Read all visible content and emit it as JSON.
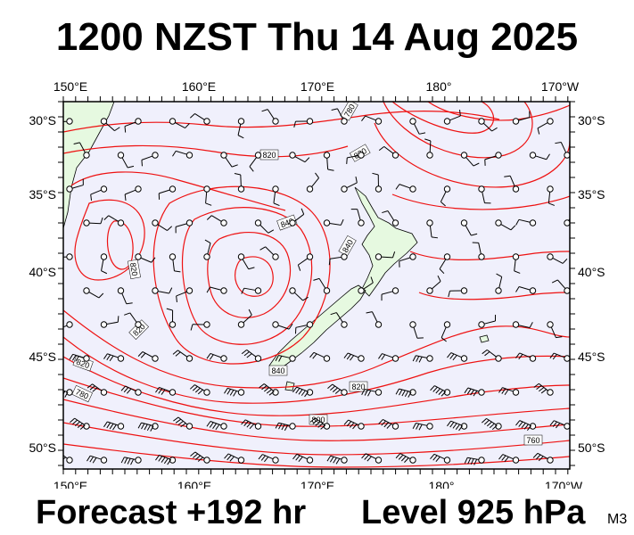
{
  "title": "1200 NZST Thu 14 Aug 2025",
  "forecast": "Forecast +192 hr",
  "level": "Level 925 hPa",
  "model_code": "M3",
  "map": {
    "lon_labels": [
      "150°E",
      "160°E",
      "170°E",
      "180°",
      "170°W"
    ],
    "lat_labels": [
      "30°S",
      "35°S",
      "40°S",
      "45°S",
      "50°S"
    ],
    "contour_labels": [
      "780",
      "820",
      "820",
      "820",
      "820",
      "840",
      "840",
      "840",
      "820",
      "820",
      "800",
      "780",
      "760"
    ],
    "colors": {
      "ocean": "#f0f0fc",
      "land": "#e6f9e0",
      "contour": "#ee1111"
    }
  }
}
